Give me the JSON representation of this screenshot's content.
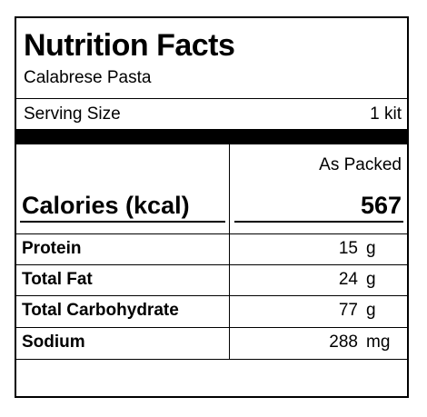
{
  "label": {
    "title": "Nutrition Facts",
    "product_name": "Calabrese Pasta",
    "serving": {
      "label": "Serving Size",
      "value": "1 kit"
    },
    "column_header": "As Packed",
    "calories": {
      "label": "Calories (kcal)",
      "value": "567"
    },
    "nutrients": [
      {
        "name": "Protein",
        "amount": "15",
        "unit": "g"
      },
      {
        "name": "Total Fat",
        "amount": "24",
        "unit": "g"
      },
      {
        "name": "Total Carbohydrate",
        "amount": "77",
        "unit": "g"
      },
      {
        "name": "Sodium",
        "amount": "288",
        "unit": "mg"
      }
    ]
  }
}
